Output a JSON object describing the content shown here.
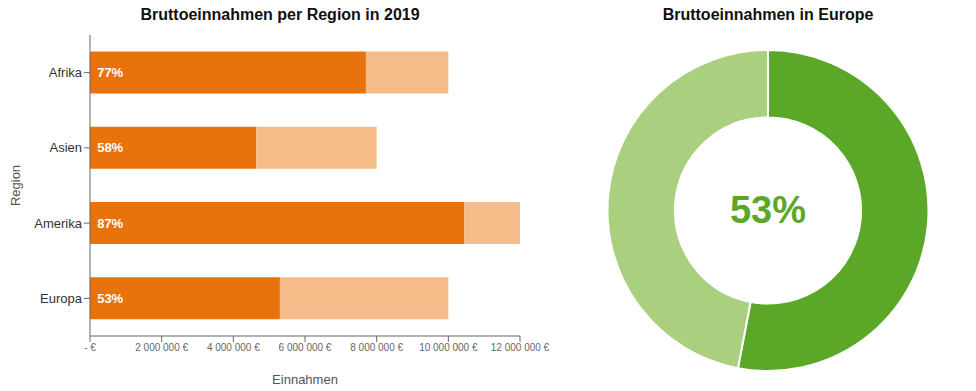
{
  "chart_data": [
    {
      "type": "bar",
      "title": "Bruttoeinnahmen per Region in 2019",
      "orientation": "horizontal",
      "stacked": true,
      "grid": false,
      "categories": [
        "Europa",
        "Amerika",
        "Asien",
        "Afrika"
      ],
      "series": [
        {
          "color": "#E8720C",
          "values": [
            5300000,
            10440000,
            4640000,
            7700000
          ]
        },
        {
          "color": "#F5BC8A",
          "values": [
            4700000,
            1560000,
            3360000,
            2300000
          ]
        }
      ],
      "xlim": [
        0,
        12000000
      ],
      "xticks": [
        {
          "value": 0,
          "label": "- €"
        },
        {
          "value": 2000000,
          "label": "2 000 000 €"
        },
        {
          "value": 4000000,
          "label": "4 000 000 €"
        },
        {
          "value": 6000000,
          "label": "6 000 000 €"
        },
        {
          "value": 8000000,
          "label": "8 000 000 €"
        },
        {
          "value": 10000000,
          "label": "10 000 000 €"
        },
        {
          "value": 12000000,
          "label": "12 000 000 €"
        }
      ],
      "x_label": "Einnahmen",
      "y_label": "Region",
      "annotations": [
        {
          "category": "Europa",
          "x": 200000,
          "text": "53%"
        },
        {
          "category": "Amerika",
          "x": 200000,
          "text": "87%"
        },
        {
          "category": "Asien",
          "x": 200000,
          "text": "58%"
        },
        {
          "category": "Afrika",
          "x": 200000,
          "text": "77%"
        }
      ]
    },
    {
      "type": "pie",
      "title": "Bruttoeinnahmen in Europe",
      "values": [
        53,
        47
      ],
      "colors": [
        "#5BA829",
        "#AACF7E"
      ],
      "annotations": [
        {
          "text": "53%"
        }
      ]
    }
  ]
}
